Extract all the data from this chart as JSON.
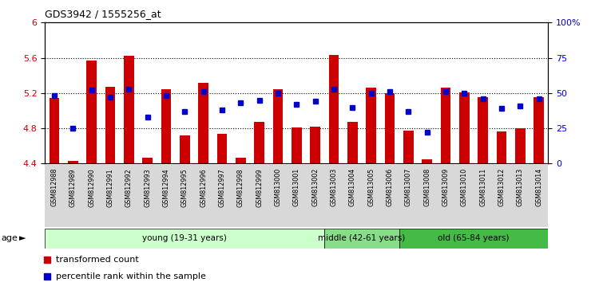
{
  "title": "GDS3942 / 1555256_at",
  "samples": [
    "GSM812988",
    "GSM812989",
    "GSM812990",
    "GSM812991",
    "GSM812992",
    "GSM812993",
    "GSM812994",
    "GSM812995",
    "GSM812996",
    "GSM812997",
    "GSM812998",
    "GSM812999",
    "GSM813000",
    "GSM813001",
    "GSM813002",
    "GSM813003",
    "GSM813004",
    "GSM813005",
    "GSM813006",
    "GSM813007",
    "GSM813008",
    "GSM813009",
    "GSM813010",
    "GSM813011",
    "GSM813012",
    "GSM813013",
    "GSM813014"
  ],
  "bar_values": [
    5.14,
    4.43,
    5.57,
    5.27,
    5.62,
    4.47,
    5.24,
    4.72,
    5.32,
    4.74,
    4.47,
    4.87,
    5.24,
    4.81,
    4.82,
    5.63,
    4.87,
    5.26,
    5.2,
    4.77,
    4.45,
    5.26,
    5.21,
    5.15,
    4.76,
    4.8,
    5.15
  ],
  "percentile_values": [
    48,
    25,
    52,
    47,
    53,
    33,
    48,
    37,
    51,
    38,
    43,
    45,
    50,
    42,
    44,
    53,
    40,
    50,
    51,
    37,
    22,
    51,
    50,
    46,
    39,
    41,
    46
  ],
  "ylim_left": [
    4.4,
    6.0
  ],
  "ylim_right": [
    0,
    100
  ],
  "yticks_left": [
    4.4,
    4.8,
    5.2,
    5.6,
    6.0
  ],
  "ytick_labels_left": [
    "4.4",
    "4.8",
    "5.2",
    "5.6",
    "6"
  ],
  "yticks_right": [
    0,
    25,
    50,
    75,
    100
  ],
  "ytick_labels_right": [
    "0",
    "25",
    "50",
    "75",
    "100%"
  ],
  "bar_color": "#cc0000",
  "dot_color": "#0000cc",
  "groups": [
    {
      "label": "young (19-31 years)",
      "start": 0,
      "end": 15,
      "color": "#ccffcc"
    },
    {
      "label": "middle (42-61 years)",
      "start": 15,
      "end": 19,
      "color": "#88dd88"
    },
    {
      "label": "old (65-84 years)",
      "start": 19,
      "end": 27,
      "color": "#44bb44"
    }
  ],
  "legend_items": [
    {
      "label": "transformed count",
      "color": "#cc0000"
    },
    {
      "label": "percentile rank within the sample",
      "color": "#0000cc"
    }
  ],
  "age_label": "age",
  "tick_label_color_left": "#cc0000",
  "tick_label_color_right": "#0000cc",
  "grid_values": [
    4.8,
    5.2,
    5.6
  ],
  "plot_bg": "#ffffff"
}
